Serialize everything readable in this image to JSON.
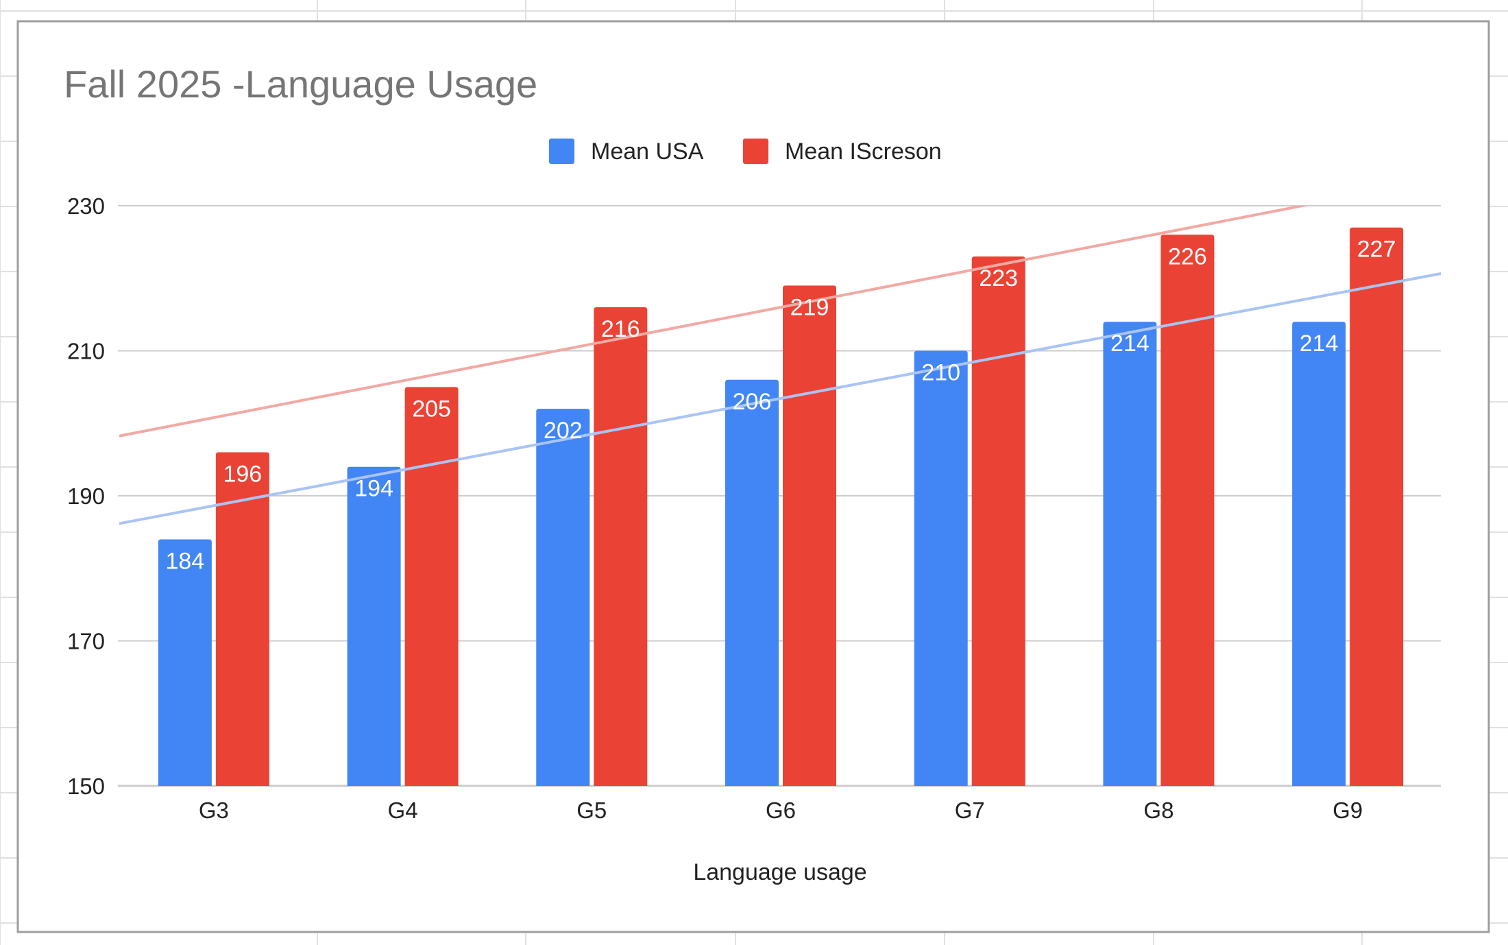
{
  "chart_data": {
    "type": "bar",
    "title": "Fall 2025 -Language Usage",
    "xlabel": "Language usage",
    "ylabel": "",
    "categories": [
      "G3",
      "G4",
      "G5",
      "G6",
      "G7",
      "G8",
      "G9"
    ],
    "series": [
      {
        "name": "Mean USA",
        "values": [
          184,
          194,
          202,
          206,
          210,
          214,
          214
        ],
        "color": "#4285F4",
        "trendline_color": "#A9C4F5"
      },
      {
        "name": "Mean IScreson",
        "values": [
          196,
          205,
          216,
          219,
          223,
          226,
          227
        ],
        "color": "#EA4335",
        "trendline_color": "#F2A9A3"
      }
    ],
    "ylim": [
      150,
      230
    ],
    "yticks": [
      150,
      170,
      190,
      210,
      230
    ],
    "ytick_labels": [
      "150",
      "170",
      "190",
      "210",
      "230"
    ],
    "grid": true,
    "legend": "top-center",
    "data_labels": true,
    "trendlines": "linear",
    "colors": {
      "title": "#757575",
      "gridline": "#CCCCCC",
      "frame": "#9E9E9E",
      "sheet_grid": "#E0E0E0"
    }
  }
}
